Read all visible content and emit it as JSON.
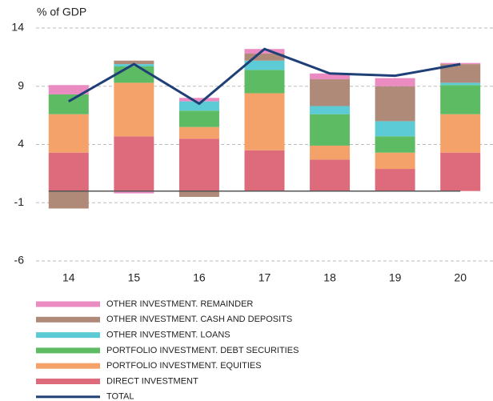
{
  "chart_data": {
    "type": "bar",
    "stacked": true,
    "y_axis_label": "% of GDP",
    "categories": [
      "14",
      "15",
      "16",
      "17",
      "18",
      "19",
      "20"
    ],
    "ylim": [
      -6,
      14
    ],
    "yticks": [
      14,
      9,
      4,
      -1,
      -6
    ],
    "grid": true,
    "series": [
      {
        "name": "OTHER INVESTMENT. REMAINDER",
        "color": "#ea8cc2",
        "values": [
          0.8,
          -0.2,
          0.3,
          0.4,
          0.5,
          0.7,
          0.1
        ]
      },
      {
        "name": "OTHER INVESTMENT. CASH AND DEPOSITS",
        "color": "#b08a78",
        "values": [
          -1.5,
          0.3,
          -0.5,
          0.6,
          2.3,
          3.0,
          1.6
        ]
      },
      {
        "name": "OTHER INVESTMENT. LOANS",
        "color": "#5ccbd6",
        "values": [
          0,
          0.2,
          0.8,
          0.8,
          0.7,
          1.3,
          0.2
        ]
      },
      {
        "name": "PORTFOLIO INVESTMENT. DEBT SECURITIES",
        "color": "#5dbb63",
        "values": [
          1.7,
          1.4,
          1.4,
          2.0,
          2.7,
          1.4,
          2.5
        ]
      },
      {
        "name": "PORTFOLIO INVESTMENT. EQUITIES",
        "color": "#f5a26a",
        "values": [
          3.3,
          4.6,
          1.0,
          4.9,
          1.2,
          1.4,
          3.3
        ]
      },
      {
        "name": "DIRECT INVESTMENT",
        "color": "#de6b7c",
        "values": [
          3.3,
          4.7,
          4.5,
          3.5,
          2.7,
          1.9,
          3.3
        ]
      },
      {
        "name": "TOTAL",
        "color": "#1f3f77",
        "type": "line",
        "values": [
          7.7,
          10.9,
          7.5,
          12.2,
          10.1,
          9.9,
          10.9
        ]
      }
    ]
  }
}
